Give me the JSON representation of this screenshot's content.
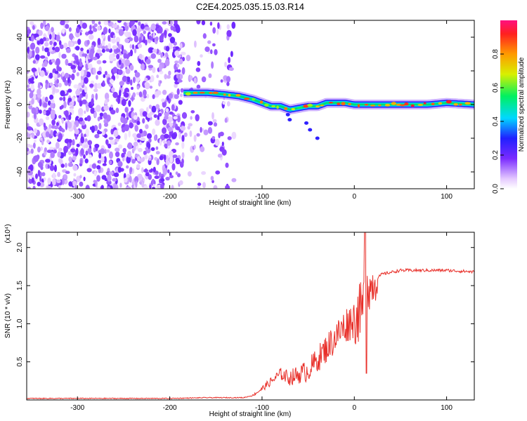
{
  "chart_data": [
    {
      "type": "heatmap",
      "title": "C2E4.2025.035.15.03.R14",
      "xlabel": "Height of straight line (km)",
      "ylabel": "Frequency (Hz)",
      "xlim": [
        -355,
        130
      ],
      "ylim": [
        -50,
        50
      ],
      "xticks": [
        "-300",
        "-200",
        "-100",
        "0",
        "100"
      ],
      "yticks": [
        "40",
        "20",
        "0",
        "-20",
        "-40"
      ],
      "colorbar": {
        "label": "Normalized spectral amplitude",
        "range": [
          0,
          1
        ],
        "ticks": [
          "0.0",
          "0.2",
          "0.4",
          "0.6",
          "0.8"
        ]
      },
      "signal_track": {
        "x": [
          -185,
          -160,
          -140,
          -125,
          -110,
          -100,
          -90,
          -80,
          -70,
          -60,
          -50,
          -40,
          -30,
          -20,
          -10,
          0,
          20,
          40,
          60,
          80,
          100,
          130
        ],
        "frequency": [
          7,
          7,
          6,
          5,
          3,
          1,
          -1,
          -1,
          -3,
          -2,
          -1,
          -1,
          1,
          1,
          1,
          0,
          0,
          0,
          0,
          0,
          1,
          0
        ]
      },
      "noise_region_x": [
        -355,
        -130
      ]
    },
    {
      "type": "line",
      "xlabel": "Height of straight line (km)",
      "ylabel": "SNR (10 * v/v)",
      "yscale_label": "(x10⁴)",
      "xlim": [
        -355,
        130
      ],
      "ylim": [
        0,
        2.2
      ],
      "xticks": [
        "-300",
        "-200",
        "-100",
        "0",
        "100"
      ],
      "yticks": [
        "0.5",
        "1.0",
        "1.5",
        "2.0"
      ],
      "series": [
        {
          "color": "#e8302a",
          "x": [
            -355,
            -300,
            -250,
            -200,
            -160,
            -120,
            -110,
            -100,
            -90,
            -80,
            -70,
            -60,
            -50,
            -40,
            -30,
            -20,
            -10,
            0,
            10,
            12,
            15,
            20,
            30,
            50,
            80,
            100,
            130
          ],
          "y": [
            0.02,
            0.02,
            0.02,
            0.02,
            0.03,
            0.03,
            0.06,
            0.15,
            0.25,
            0.35,
            0.3,
            0.35,
            0.4,
            0.55,
            0.7,
            0.85,
            1.0,
            1.1,
            1.25,
            2.2,
            1.45,
            1.55,
            1.65,
            1.7,
            1.7,
            1.7,
            1.68
          ]
        }
      ]
    }
  ]
}
